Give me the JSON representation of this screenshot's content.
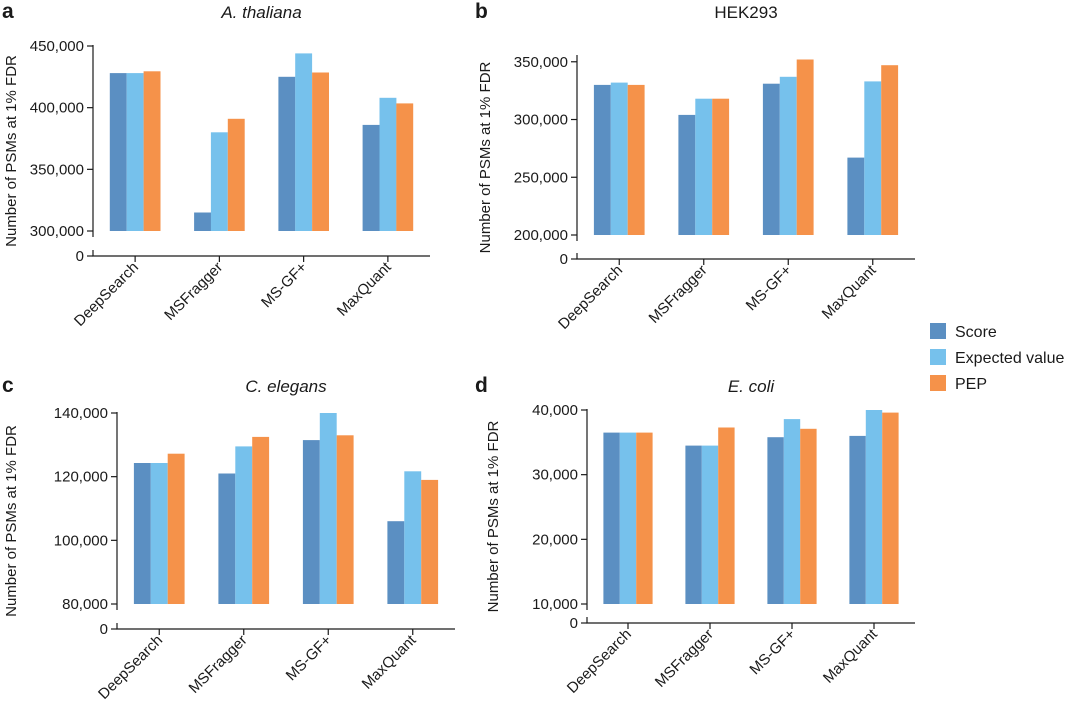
{
  "figure": {
    "legend": [
      {
        "name": "Score",
        "color": "#5b8fc2"
      },
      {
        "name": "Expected value",
        "color": "#76c1ec"
      },
      {
        "name": "PEP",
        "color": "#f5924a"
      }
    ]
  },
  "chart_data": [
    {
      "type": "bar",
      "panel": "a",
      "title": "A. thaliana",
      "title_italic": true,
      "ylabel": "Number of PSMs at 1% FDR",
      "categories": [
        "DeepSearch",
        "MSFragger",
        "MS-GF+",
        "MaxQuant"
      ],
      "yticks": [
        0,
        300000,
        350000,
        400000,
        450000
      ],
      "ytick_labels": [
        "0",
        "300,000",
        "350,000",
        "400,000",
        "450,000"
      ],
      "ylim": [
        300000,
        450000
      ],
      "axis_break": true,
      "series": [
        {
          "name": "Score",
          "values": [
            428000,
            315000,
            425000,
            386000
          ]
        },
        {
          "name": "Expected value",
          "values": [
            428000,
            380000,
            444000,
            408000
          ]
        },
        {
          "name": "PEP",
          "values": [
            429500,
            391000,
            428500,
            403500
          ]
        }
      ]
    },
    {
      "type": "bar",
      "panel": "b",
      "title": "HEK293",
      "title_italic": false,
      "ylabel": "Number of PSMs at 1% FDR",
      "categories": [
        "DeepSearch",
        "MSFragger",
        "MS-GF+",
        "MaxQuant"
      ],
      "yticks": [
        0,
        200000,
        250000,
        300000,
        350000
      ],
      "ytick_labels": [
        "0",
        "200,000",
        "250,000",
        "300,000",
        "350,000"
      ],
      "ylim": [
        200000,
        355000
      ],
      "axis_break": true,
      "series": [
        {
          "name": "Score",
          "values": [
            330000,
            304000,
            331000,
            267000
          ]
        },
        {
          "name": "Expected value",
          "values": [
            332000,
            318000,
            337000,
            333000
          ]
        },
        {
          "name": "PEP",
          "values": [
            330000,
            318000,
            352000,
            347000
          ]
        }
      ]
    },
    {
      "type": "bar",
      "panel": "c",
      "title": "C. elegans",
      "title_italic": true,
      "ylabel": "Number of PSMs at 1% FDR",
      "categories": [
        "DeepSearch",
        "MSFragger",
        "MS-GF+",
        "MaxQuant"
      ],
      "yticks": [
        0,
        80000,
        100000,
        120000,
        140000
      ],
      "ytick_labels": [
        "0",
        "80,000",
        "100,000",
        "120,000",
        "140,000"
      ],
      "ylim": [
        80000,
        140000
      ],
      "axis_break": true,
      "series": [
        {
          "name": "Score",
          "values": [
            124300,
            121000,
            131500,
            106000
          ]
        },
        {
          "name": "Expected value",
          "values": [
            124300,
            129500,
            140000,
            121700
          ]
        },
        {
          "name": "PEP",
          "values": [
            127200,
            132500,
            133000,
            119000
          ]
        }
      ]
    },
    {
      "type": "bar",
      "panel": "d",
      "title": "E. coli",
      "title_italic": true,
      "ylabel": "Number of PSMs at 1% FDR",
      "categories": [
        "DeepSearch",
        "MSFragger",
        "MS-GF+",
        "MaxQuant"
      ],
      "yticks": [
        0,
        10000,
        20000,
        30000,
        40000
      ],
      "ytick_labels": [
        "0",
        "10,000",
        "20,000",
        "30,000",
        "40,000"
      ],
      "ylim": [
        10000,
        40000
      ],
      "axis_break": true,
      "series": [
        {
          "name": "Score",
          "values": [
            36500,
            34500,
            35800,
            36000
          ]
        },
        {
          "name": "Expected value",
          "values": [
            36500,
            34500,
            38600,
            40000
          ]
        },
        {
          "name": "PEP",
          "values": [
            36500,
            37300,
            37100,
            39600
          ]
        }
      ]
    }
  ]
}
